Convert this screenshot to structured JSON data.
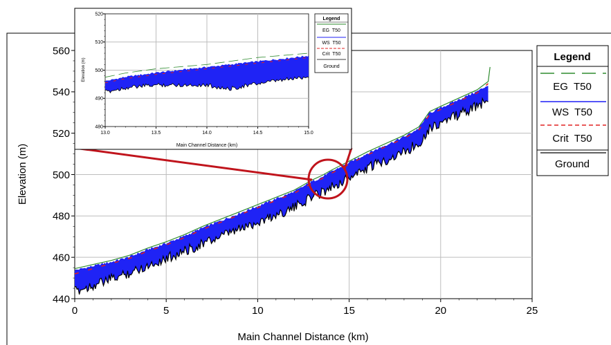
{
  "chart_data": [
    {
      "type": "line",
      "xlabel": "Main Channel Distance (km)",
      "ylabel": "Elevation (m)",
      "xlim": [
        0,
        25
      ],
      "ylim": [
        440,
        560
      ],
      "xticks": [
        "0",
        "5",
        "10",
        "15",
        "20",
        "25"
      ],
      "yticks": [
        "440",
        "460",
        "480",
        "500",
        "520",
        "540",
        "560"
      ],
      "grid": true,
      "legend": {
        "title": "Legend",
        "placement": "right",
        "entries": [
          {
            "label": "EG  T50",
            "color": "#2e8b2e",
            "style": "long-dash"
          },
          {
            "label": "WS  T50",
            "color": "#1d1df5",
            "style": "solid"
          },
          {
            "label": "Crit  T50",
            "color": "#e02020",
            "style": "dashed"
          },
          {
            "label": "Ground",
            "color": "#000000",
            "style": "solid"
          }
        ]
      },
      "series": [
        {
          "name": "EG  T50",
          "x": [
            0,
            1,
            2,
            3,
            4,
            5,
            6,
            7,
            8,
            9,
            10,
            11,
            12,
            13,
            13.5,
            14,
            15,
            16,
            17,
            18,
            18.8,
            19.4,
            20,
            21,
            22,
            22.6,
            22.7
          ],
          "y": [
            454.5,
            456.5,
            458.5,
            461,
            464.5,
            467.5,
            471,
            475,
            478.5,
            482,
            485.5,
            489,
            492.5,
            497.5,
            499.5,
            502,
            506.5,
            511,
            515,
            519,
            523,
            530.5,
            533,
            537,
            541,
            545,
            552
          ]
        },
        {
          "name": "WS  T50",
          "x": [
            0,
            1,
            2,
            3,
            4,
            5,
            6,
            7,
            8,
            9,
            10,
            11,
            12,
            13,
            13.5,
            14,
            15,
            16,
            17,
            18,
            18.8,
            19.4,
            20,
            21,
            22,
            22.6
          ],
          "y": [
            453.5,
            455.5,
            457.5,
            460,
            463.5,
            466.5,
            470,
            474,
            477.5,
            481,
            484.5,
            488,
            491.5,
            496.5,
            498.5,
            501,
            505.5,
            510,
            514,
            518,
            522,
            529.5,
            532,
            536,
            540,
            543
          ]
        },
        {
          "name": "Crit  T50",
          "x": [
            0,
            1,
            2,
            3,
            4,
            5,
            6,
            7,
            8,
            9,
            10,
            11,
            12,
            13,
            13.5,
            14,
            15,
            16,
            17,
            18,
            18.8,
            19.4,
            20,
            21,
            22,
            22.6
          ],
          "y": [
            452,
            454.5,
            457,
            459.5,
            463,
            466,
            469.5,
            473.5,
            477,
            480.5,
            484,
            487.5,
            491,
            496,
            498,
            500.5,
            505,
            509.5,
            513.5,
            517.5,
            521.5,
            529,
            531.5,
            535.5,
            539.5,
            544
          ]
        },
        {
          "name": "Ground",
          "x": [
            0,
            1,
            2,
            3,
            4,
            5,
            6,
            7,
            8,
            9,
            10,
            11,
            12,
            13,
            13.5,
            14,
            15,
            16,
            17,
            18,
            18.8,
            19.4,
            20,
            21,
            22,
            22.6
          ],
          "y": [
            446,
            449,
            452,
            455,
            458.5,
            462,
            465.5,
            469,
            472.5,
            476,
            479.5,
            483,
            486.5,
            492,
            494,
            496.5,
            501,
            505.5,
            509.5,
            513.5,
            517.5,
            525,
            527.5,
            531.5,
            535.5,
            538.5
          ]
        }
      ],
      "callout": "circle around 13–15 km linked to the inset"
    },
    {
      "type": "line",
      "role": "inset",
      "xlabel": "Main Channel Distance (km)",
      "ylabel": "Elevation (m)",
      "xlim": [
        13.0,
        15.0
      ],
      "ylim": [
        480,
        520
      ],
      "xticks": [
        "13.0",
        "13.5",
        "14.0",
        "14.5",
        "15.0"
      ],
      "yticks": [
        "480",
        "490",
        "500",
        "510",
        "520"
      ],
      "grid": true,
      "legend": {
        "title": "Legend",
        "placement": "right",
        "entries": [
          {
            "label": "EG  T50",
            "color": "#2e8b2e"
          },
          {
            "label": "WS  T50",
            "color": "#1d1df5"
          },
          {
            "label": "Crit  T50",
            "color": "#e02020"
          },
          {
            "label": "Ground",
            "color": "#000000"
          }
        ]
      },
      "series": [
        {
          "name": "EG  T50",
          "x": [
            13.0,
            13.2,
            13.5,
            14.0,
            14.5,
            15.0
          ],
          "y": [
            497.5,
            499,
            500.5,
            502,
            504.5,
            506
          ]
        },
        {
          "name": "WS  T50",
          "x": [
            13.0,
            13.2,
            13.5,
            14.0,
            14.5,
            15.0
          ],
          "y": [
            496,
            497.5,
            499,
            501,
            503,
            505
          ]
        },
        {
          "name": "Crit  T50",
          "x": [
            13.0,
            13.2,
            13.5,
            14.0,
            14.5,
            15.0
          ],
          "y": [
            495.5,
            497,
            498.5,
            500.5,
            502.5,
            504.5
          ]
        },
        {
          "name": "Ground",
          "x": [
            13.0,
            13.2,
            13.5,
            14.0,
            14.2,
            14.5,
            15.0
          ],
          "y": [
            493,
            494.5,
            495.5,
            495.5,
            494,
            496,
            498.5
          ]
        }
      ]
    }
  ]
}
